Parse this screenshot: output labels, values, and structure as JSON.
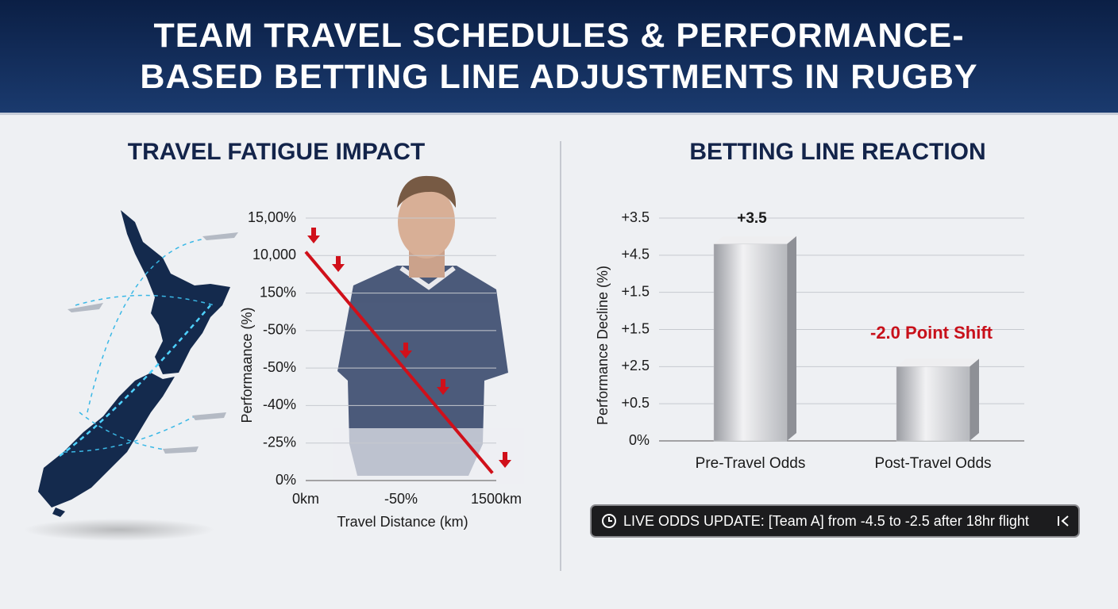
{
  "header": {
    "title": "TEAM TRAVEL SCHEDULES & PERFORMANCE-BASED BETTING LINE ADJUSTMENTS IN RUGBY"
  },
  "chart_data": [
    {
      "type": "line",
      "title": "TRAVEL FATIGUE IMPACT",
      "x": [
        0,
        1470
      ],
      "values": [
        6.1,
        0.2
      ],
      "color": "#d0101a",
      "xlim": [
        0,
        1500
      ],
      "xticks": [
        {
          "value": 0,
          "label": "0km"
        },
        {
          "value": 750,
          "label": "-50%"
        },
        {
          "value": 1500,
          "label": "1500km"
        }
      ],
      "ylim": [
        0,
        7
      ],
      "yticks": [
        {
          "value": 0,
          "label": "0%"
        },
        {
          "value": 1,
          "label": "-25%"
        },
        {
          "value": 2,
          "label": "-40%"
        },
        {
          "value": 3,
          "label": "-50%"
        },
        {
          "value": 4,
          "label": "-50%"
        },
        {
          "value": 5,
          "label": "150%"
        },
        {
          "value": 6,
          "label": "10,000"
        },
        {
          "value": 7,
          "label": "15,00%"
        }
      ],
      "xlabel": "Travel Distance (km)",
      "ylabel": "Performaance (%)",
      "grid": true
    },
    {
      "type": "bar",
      "title": "BETTING LINE REACTION",
      "categories": [
        "Pre-Travel Odds",
        "Post-Travel Odds"
      ],
      "values": [
        5.3,
        2.0
      ],
      "color": "#c9cacd",
      "ylim": [
        0,
        6
      ],
      "yticks": [
        {
          "value": 0,
          "label": "0%"
        },
        {
          "value": 1,
          "label": "+0.5"
        },
        {
          "value": 2,
          "label": "+2.5"
        },
        {
          "value": 3,
          "label": "+1.5"
        },
        {
          "value": 4,
          "label": "+1.5"
        },
        {
          "value": 5,
          "label": "+4.5"
        },
        {
          "value": 6,
          "label": "+3.5"
        }
      ],
      "ylabel": "Performance Decline (%)",
      "grid": true,
      "annotations": [
        "+3.5",
        "-2.0 Point Shift"
      ]
    }
  ],
  "ticker": {
    "text": "LIVE ODDS UPDATE: [Team A] from -4.5 to -2.5 after 18hr flight"
  }
}
